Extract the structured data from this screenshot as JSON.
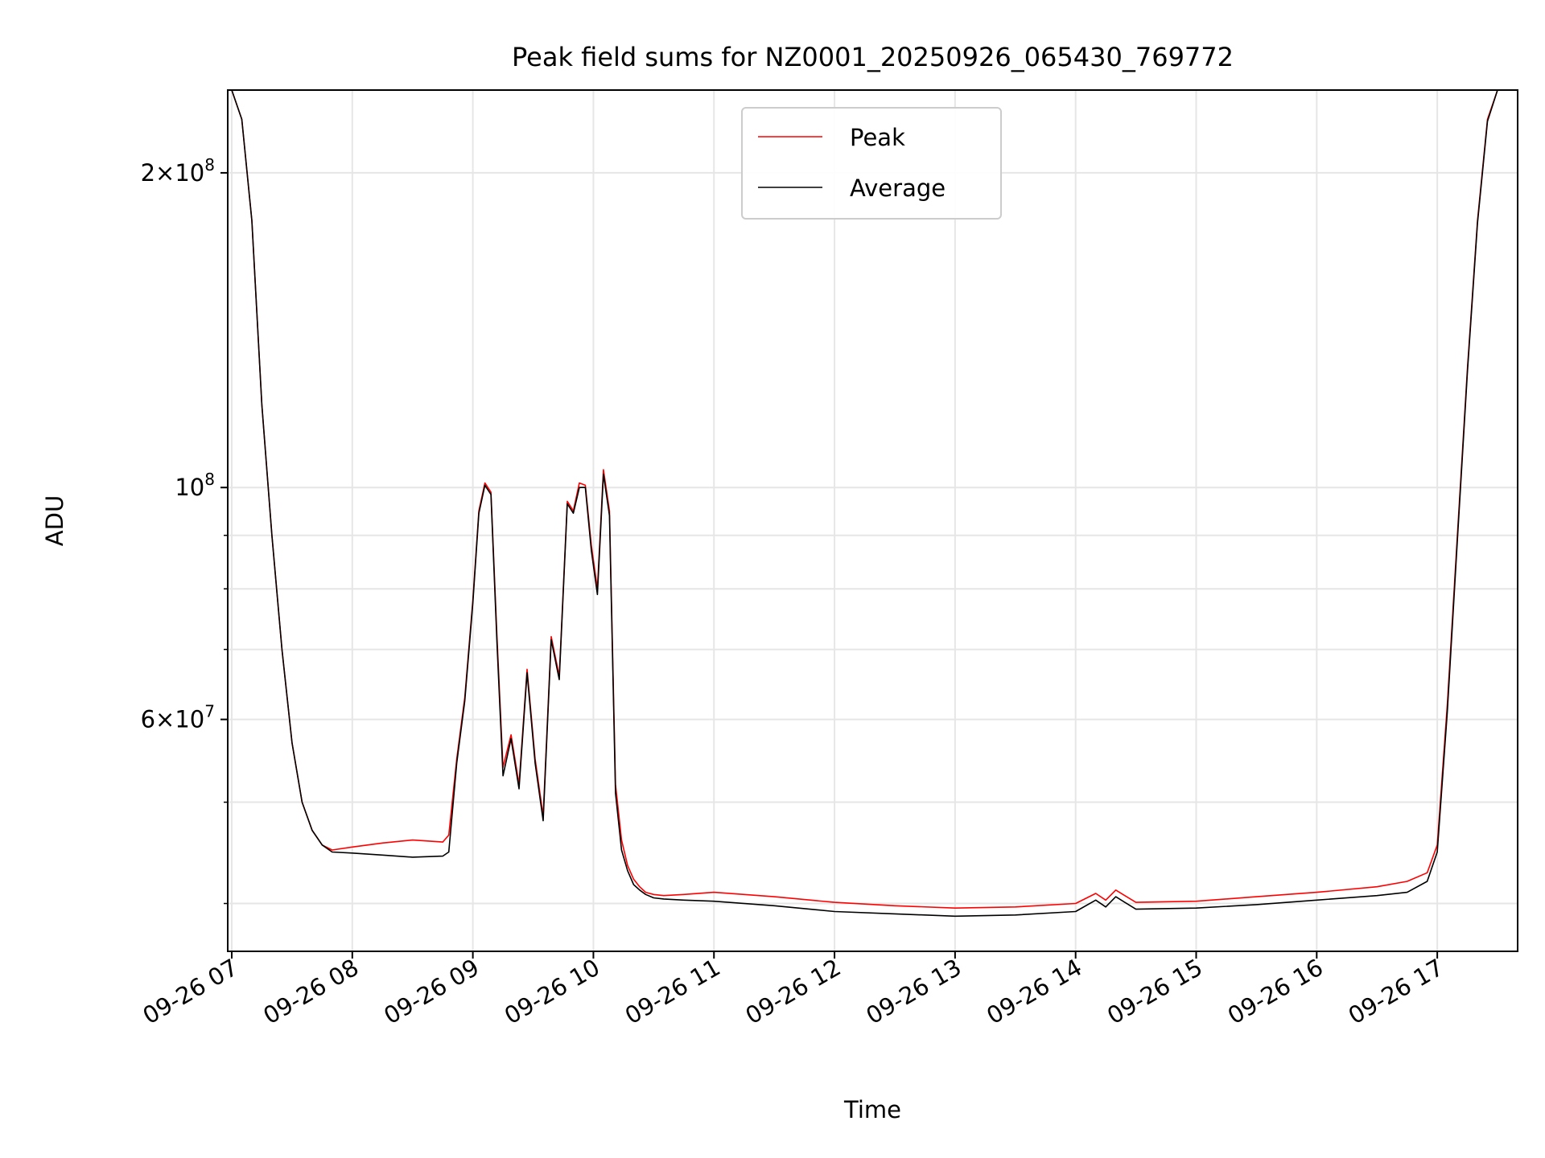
{
  "chart_data": {
    "type": "line",
    "title": "Peak field sums for NZ0001_20250926_065430_769772",
    "xlabel": "Time",
    "ylabel": "ADU",
    "yscale": "log",
    "grid": true,
    "legend_placement": "top-center",
    "x_tick_labels": [
      "09-26 07",
      "09-26 08",
      "09-26 09",
      "09-26 10",
      "09-26 11",
      "09-26 12",
      "09-26 13",
      "09-26 14",
      "09-26 15",
      "09-26 16",
      "09-26 17"
    ],
    "y_major_ticks": [
      {
        "value": 60000000,
        "mantissa": "6",
        "exponent": "7"
      },
      {
        "value": 100000000,
        "mantissa": "",
        "exponent": "8"
      },
      {
        "value": 200000000,
        "mantissa": "2",
        "exponent": "8"
      }
    ],
    "y_minor_ticks": [
      40000000,
      50000000,
      70000000,
      80000000,
      90000000
    ],
    "xlim": [
      "2025-09-26T06:58",
      "2025-09-26T17:40"
    ],
    "ylim": [
      36000000,
      240000000
    ],
    "x": [
      "2025-09-26T07:00",
      "2025-09-26T07:05",
      "2025-09-26T07:10",
      "2025-09-26T07:15",
      "2025-09-26T07:20",
      "2025-09-26T07:25",
      "2025-09-26T07:30",
      "2025-09-26T07:35",
      "2025-09-26T07:40",
      "2025-09-26T07:45",
      "2025-09-26T07:50",
      "2025-09-26T08:00",
      "2025-09-26T08:15",
      "2025-09-26T08:30",
      "2025-09-26T08:45",
      "2025-09-26T08:48",
      "2025-09-26T08:52",
      "2025-09-26T08:56",
      "2025-09-26T09:00",
      "2025-09-26T09:03",
      "2025-09-26T09:06",
      "2025-09-26T09:09",
      "2025-09-26T09:12",
      "2025-09-26T09:15",
      "2025-09-26T09:19",
      "2025-09-26T09:23",
      "2025-09-26T09:27",
      "2025-09-26T09:31",
      "2025-09-26T09:35",
      "2025-09-26T09:39",
      "2025-09-26T09:43",
      "2025-09-26T09:47",
      "2025-09-26T09:50",
      "2025-09-26T09:53",
      "2025-09-26T09:56",
      "2025-09-26T09:59",
      "2025-09-26T10:02",
      "2025-09-26T10:05",
      "2025-09-26T10:08",
      "2025-09-26T10:11",
      "2025-09-26T10:14",
      "2025-09-26T10:17",
      "2025-09-26T10:20",
      "2025-09-26T10:23",
      "2025-09-26T10:26",
      "2025-09-26T10:30",
      "2025-09-26T10:35",
      "2025-09-26T10:45",
      "2025-09-26T11:00",
      "2025-09-26T11:30",
      "2025-09-26T12:00",
      "2025-09-26T12:30",
      "2025-09-26T13:00",
      "2025-09-26T13:30",
      "2025-09-26T14:00",
      "2025-09-26T14:10",
      "2025-09-26T14:15",
      "2025-09-26T14:20",
      "2025-09-26T14:30",
      "2025-09-26T15:00",
      "2025-09-26T15:30",
      "2025-09-26T16:00",
      "2025-09-26T16:30",
      "2025-09-26T16:45",
      "2025-09-26T16:55",
      "2025-09-26T17:00",
      "2025-09-26T17:05",
      "2025-09-26T17:10",
      "2025-09-26T17:15",
      "2025-09-26T17:20",
      "2025-09-26T17:25",
      "2025-09-26T17:30",
      "2025-09-26T17:35"
    ],
    "series": [
      {
        "name": "Peak",
        "color": "#ff0000",
        "values": [
          240000000,
          225000000,
          180000000,
          120000000,
          90000000,
          70000000,
          57000000,
          50000000,
          47000000,
          45500000,
          45000000,
          45300000,
          45700000,
          46000000,
          45800000,
          46500000,
          55000000,
          63000000,
          78000000,
          95000000,
          101000000,
          99000000,
          72000000,
          54000000,
          58000000,
          52000000,
          67000000,
          55000000,
          48500000,
          72000000,
          66000000,
          97000000,
          95000000,
          101000000,
          100500000,
          88000000,
          80000000,
          104000000,
          95000000,
          52000000,
          46000000,
          43500000,
          42200000,
          41500000,
          41000000,
          40800000,
          40700000,
          40800000,
          41000000,
          40600000,
          40100000,
          39800000,
          39600000,
          39700000,
          40000000,
          40900000,
          40300000,
          41200000,
          40100000,
          40200000,
          40600000,
          41000000,
          41500000,
          42000000,
          42800000,
          45500000,
          62000000,
          90000000,
          130000000,
          180000000,
          225000000,
          240000000,
          240000000
        ]
      },
      {
        "name": "Average",
        "color": "#000000",
        "values": [
          240000000,
          225000000,
          180000000,
          120000000,
          90000000,
          70000000,
          57000000,
          50000000,
          47000000,
          45500000,
          44800000,
          44700000,
          44500000,
          44300000,
          44400000,
          44800000,
          54500000,
          62500000,
          77500000,
          94500000,
          100500000,
          98500000,
          71000000,
          53000000,
          57500000,
          51500000,
          66500000,
          54500000,
          48000000,
          71500000,
          65500000,
          96500000,
          94500000,
          100000000,
          100000000,
          87000000,
          79000000,
          103000000,
          94000000,
          51000000,
          45000000,
          43000000,
          41700000,
          41200000,
          40800000,
          40500000,
          40400000,
          40300000,
          40200000,
          39800000,
          39300000,
          39100000,
          38900000,
          39000000,
          39300000,
          40300000,
          39700000,
          40600000,
          39500000,
          39600000,
          39900000,
          40300000,
          40700000,
          41000000,
          42000000,
          44800000,
          61000000,
          89000000,
          129000000,
          179000000,
          224000000,
          240000000,
          240000000
        ]
      }
    ]
  }
}
